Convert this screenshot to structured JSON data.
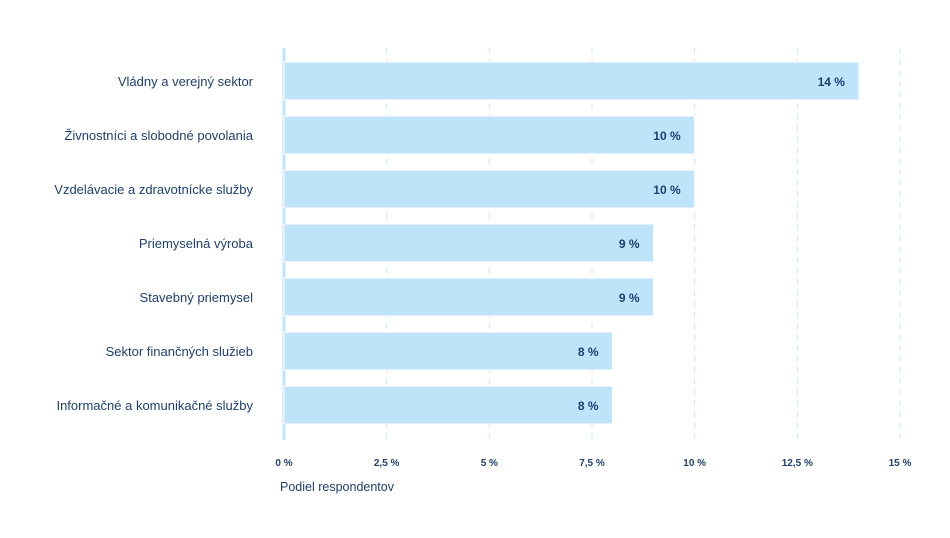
{
  "chart_data": {
    "type": "bar",
    "orientation": "horizontal",
    "categories": [
      "Vládny a verejný sektor",
      "Živnostníci a slobodné povolania",
      "Vzdelávacie a zdravotnícke služby",
      "Priemyselná výroba",
      "Stavebný priemysel",
      "Sektor finančných služieb",
      "Informačné a komunikačné služby"
    ],
    "values": [
      14,
      10,
      10,
      9,
      9,
      8,
      8
    ],
    "value_labels": [
      "14 %",
      "10 %",
      "10 %",
      "9 %",
      "9 %",
      "8 %",
      "8 %"
    ],
    "xlabel": "Podiel respondentov",
    "ylabel": "",
    "xlim": [
      0,
      15
    ],
    "x_ticks": [
      0,
      2.5,
      5,
      7.5,
      10,
      12.5,
      15
    ],
    "x_tick_labels": [
      "0 %",
      "2,5 %",
      "5 %",
      "7,5 %",
      "10 %",
      "12,5 %",
      "15 %"
    ],
    "grid": true,
    "colors": {
      "bar": "#bfe3f9",
      "text": "#1d3f6e",
      "grid": "#cfe5f3"
    }
  }
}
